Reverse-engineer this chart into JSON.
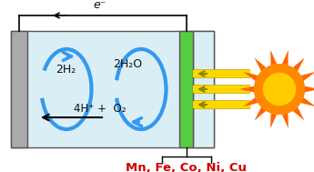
{
  "fig_width": 3.45,
  "fig_height": 1.89,
  "dpi": 100,
  "bg_color": "#ffffff",
  "cell_bg": "#daeef5",
  "electrode_left_color": "#aaaaaa",
  "electrode_green_color": "#55cc44",
  "arrow_color": "#3399ee",
  "label_2H2": "2H₂",
  "label_2H2O": "2H₂O",
  "label_reaction": "4H⁺ +  O₂",
  "label_electron": "e⁻",
  "label_metals": "Mn, Fe, Co, Ni, Cu",
  "metals_color": "#cc0000",
  "text_color": "#111111",
  "ray_gold": "#ccaa00",
  "ray_yellow": "#FFD700",
  "sun_orange": "#FF8800",
  "sun_yellow": "#FFCC00",
  "sun_ray_color": "#FF6600"
}
